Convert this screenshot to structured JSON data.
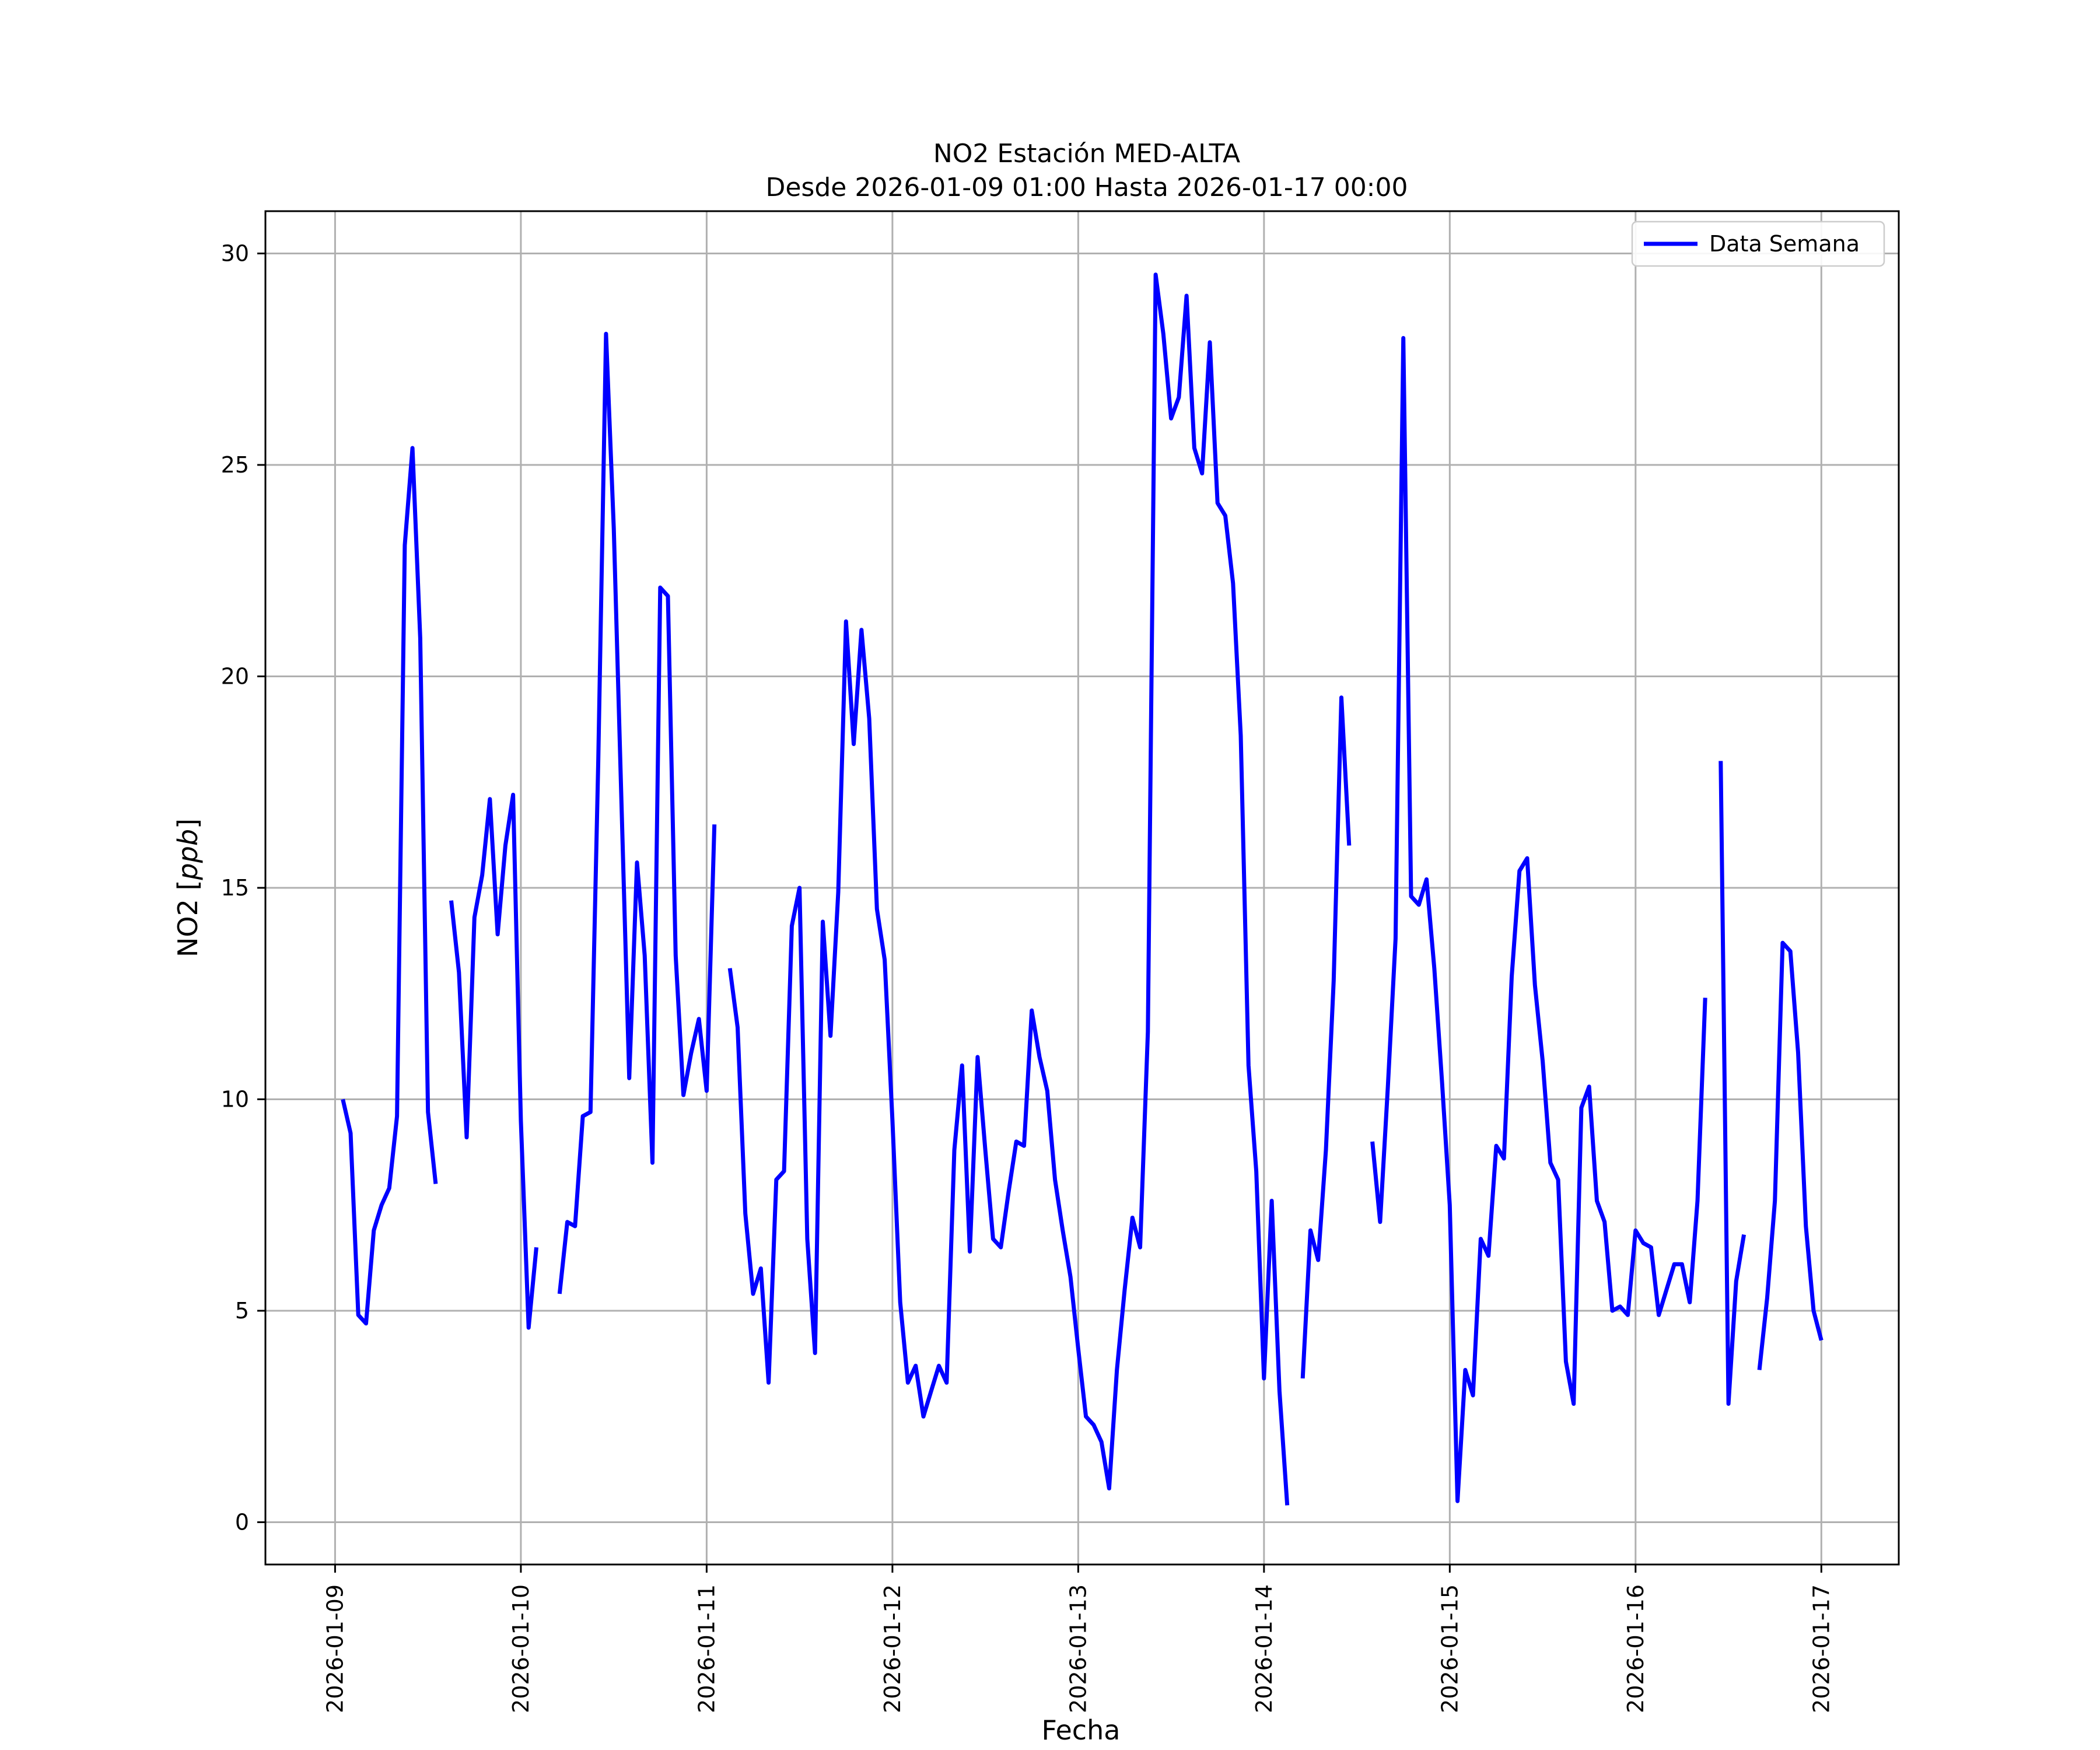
{
  "chart_data": {
    "type": "line",
    "title": "NO2 Estación MED-ALTA",
    "subtitle": "Desde 2026-01-09 01:00 Hasta 2026-01-17 00:00",
    "xlabel": "Fecha",
    "ylabel_text": "NO2 [",
    "ylabel_unit": "ppb",
    "ylabel_close": "]",
    "xlim": [
      "2026-01-08 15:00",
      "2026-01-17 10:00"
    ],
    "ylim": [
      -1,
      31
    ],
    "x_ticks": [
      "2026-01-09",
      "2026-01-10",
      "2026-01-11",
      "2026-01-12",
      "2026-01-13",
      "2026-01-14",
      "2026-01-15",
      "2026-01-16",
      "2026-01-17"
    ],
    "y_ticks": [
      0,
      5,
      10,
      15,
      20,
      25,
      30
    ],
    "grid": true,
    "legend_position": "top-right",
    "colors": {
      "series": "#0000ff",
      "grid": "#b0b0b0"
    },
    "series": [
      {
        "name": "Data Semana",
        "x_start": "2026-01-09 01:00",
        "x_step": "1 hour",
        "values": [
          10.0,
          9.2,
          4.9,
          4.7,
          6.9,
          7.5,
          7.9,
          9.6,
          23.1,
          25.4,
          20.9,
          9.7,
          8.0,
          null,
          14.7,
          13.0,
          9.1,
          14.3,
          15.3,
          17.1,
          13.9,
          16.0,
          17.2,
          9.5,
          4.6,
          6.5,
          null,
          null,
          5.4,
          7.1,
          7.0,
          9.6,
          9.7,
          18.0,
          28.1,
          23.5,
          17.0,
          10.5,
          15.6,
          13.4,
          8.5,
          22.1,
          21.9,
          13.4,
          10.1,
          11.1,
          11.9,
          10.2,
          16.5,
          null,
          13.1,
          11.7,
          7.3,
          5.4,
          6.0,
          3.3,
          8.1,
          8.3,
          14.1,
          15.0,
          6.7,
          4.0,
          14.2,
          11.5,
          14.9,
          21.3,
          18.4,
          21.1,
          19.0,
          14.5,
          13.3,
          9.5,
          5.2,
          3.3,
          3.7,
          2.5,
          3.1,
          3.7,
          3.3,
          8.8,
          10.8,
          6.4,
          11.0,
          8.8,
          6.7,
          6.5,
          7.8,
          9.0,
          8.9,
          12.1,
          11.0,
          10.2,
          8.1,
          6.9,
          5.8,
          4.1,
          2.5,
          2.3,
          1.9,
          0.8,
          3.6,
          5.5,
          7.2,
          6.5,
          11.6,
          29.5,
          28.1,
          26.1,
          26.6,
          29.0,
          25.4,
          24.8,
          27.9,
          24.1,
          23.8,
          22.2,
          18.6,
          10.8,
          8.3,
          3.4,
          7.6,
          3.1,
          0.4,
          null,
          3.4,
          6.9,
          6.2,
          8.8,
          12.8,
          19.5,
          16.0,
          null,
          null,
          9.0,
          7.1,
          10.3,
          13.8,
          28.0,
          14.8,
          14.6,
          15.2,
          13.1,
          10.4,
          7.5,
          0.5,
          3.6,
          3.0,
          6.7,
          6.3,
          8.9,
          8.6,
          12.9,
          15.4,
          15.7,
          12.7,
          10.9,
          8.5,
          8.1,
          3.8,
          2.8,
          9.8,
          10.3,
          7.6,
          7.1,
          5.0,
          5.1,
          4.9,
          6.9,
          6.6,
          6.5,
          4.9,
          5.5,
          6.1,
          6.1,
          5.2,
          7.6,
          12.4,
          null,
          18.0,
          2.8,
          5.7,
          6.8,
          null,
          3.6,
          5.3,
          7.6,
          13.7,
          13.5,
          11.1,
          7.0,
          5.0,
          4.3
        ]
      }
    ]
  }
}
